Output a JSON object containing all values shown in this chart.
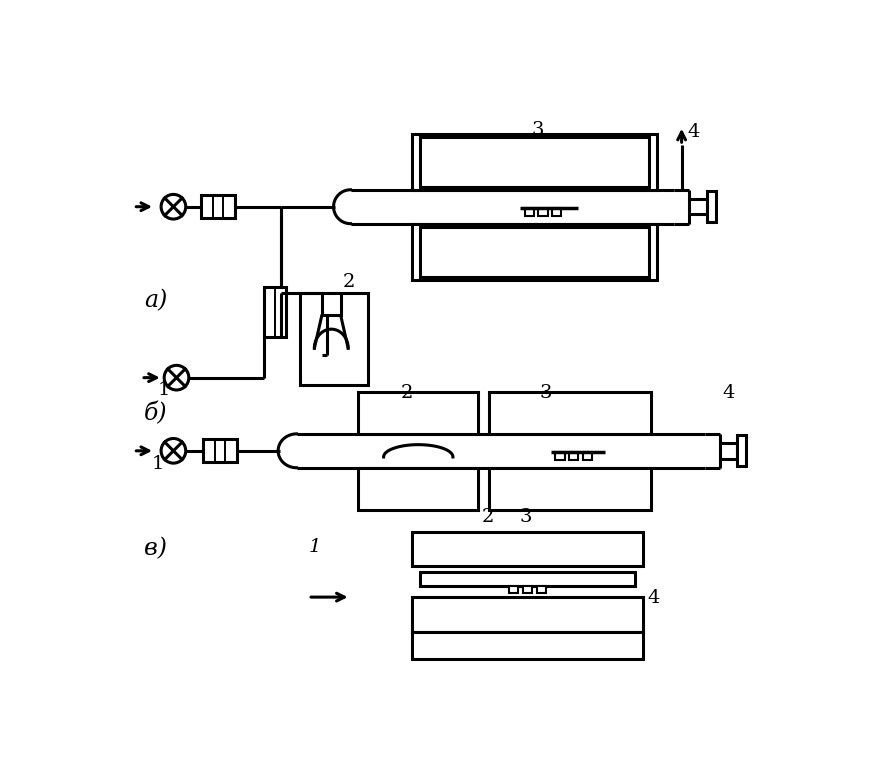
{
  "bg_color": "#ffffff",
  "lc": "#000000",
  "label_a": "a)",
  "label_b": "б)",
  "label_v": "в)",
  "n1": "1",
  "n2": "2",
  "n3": "3",
  "n4": "4"
}
